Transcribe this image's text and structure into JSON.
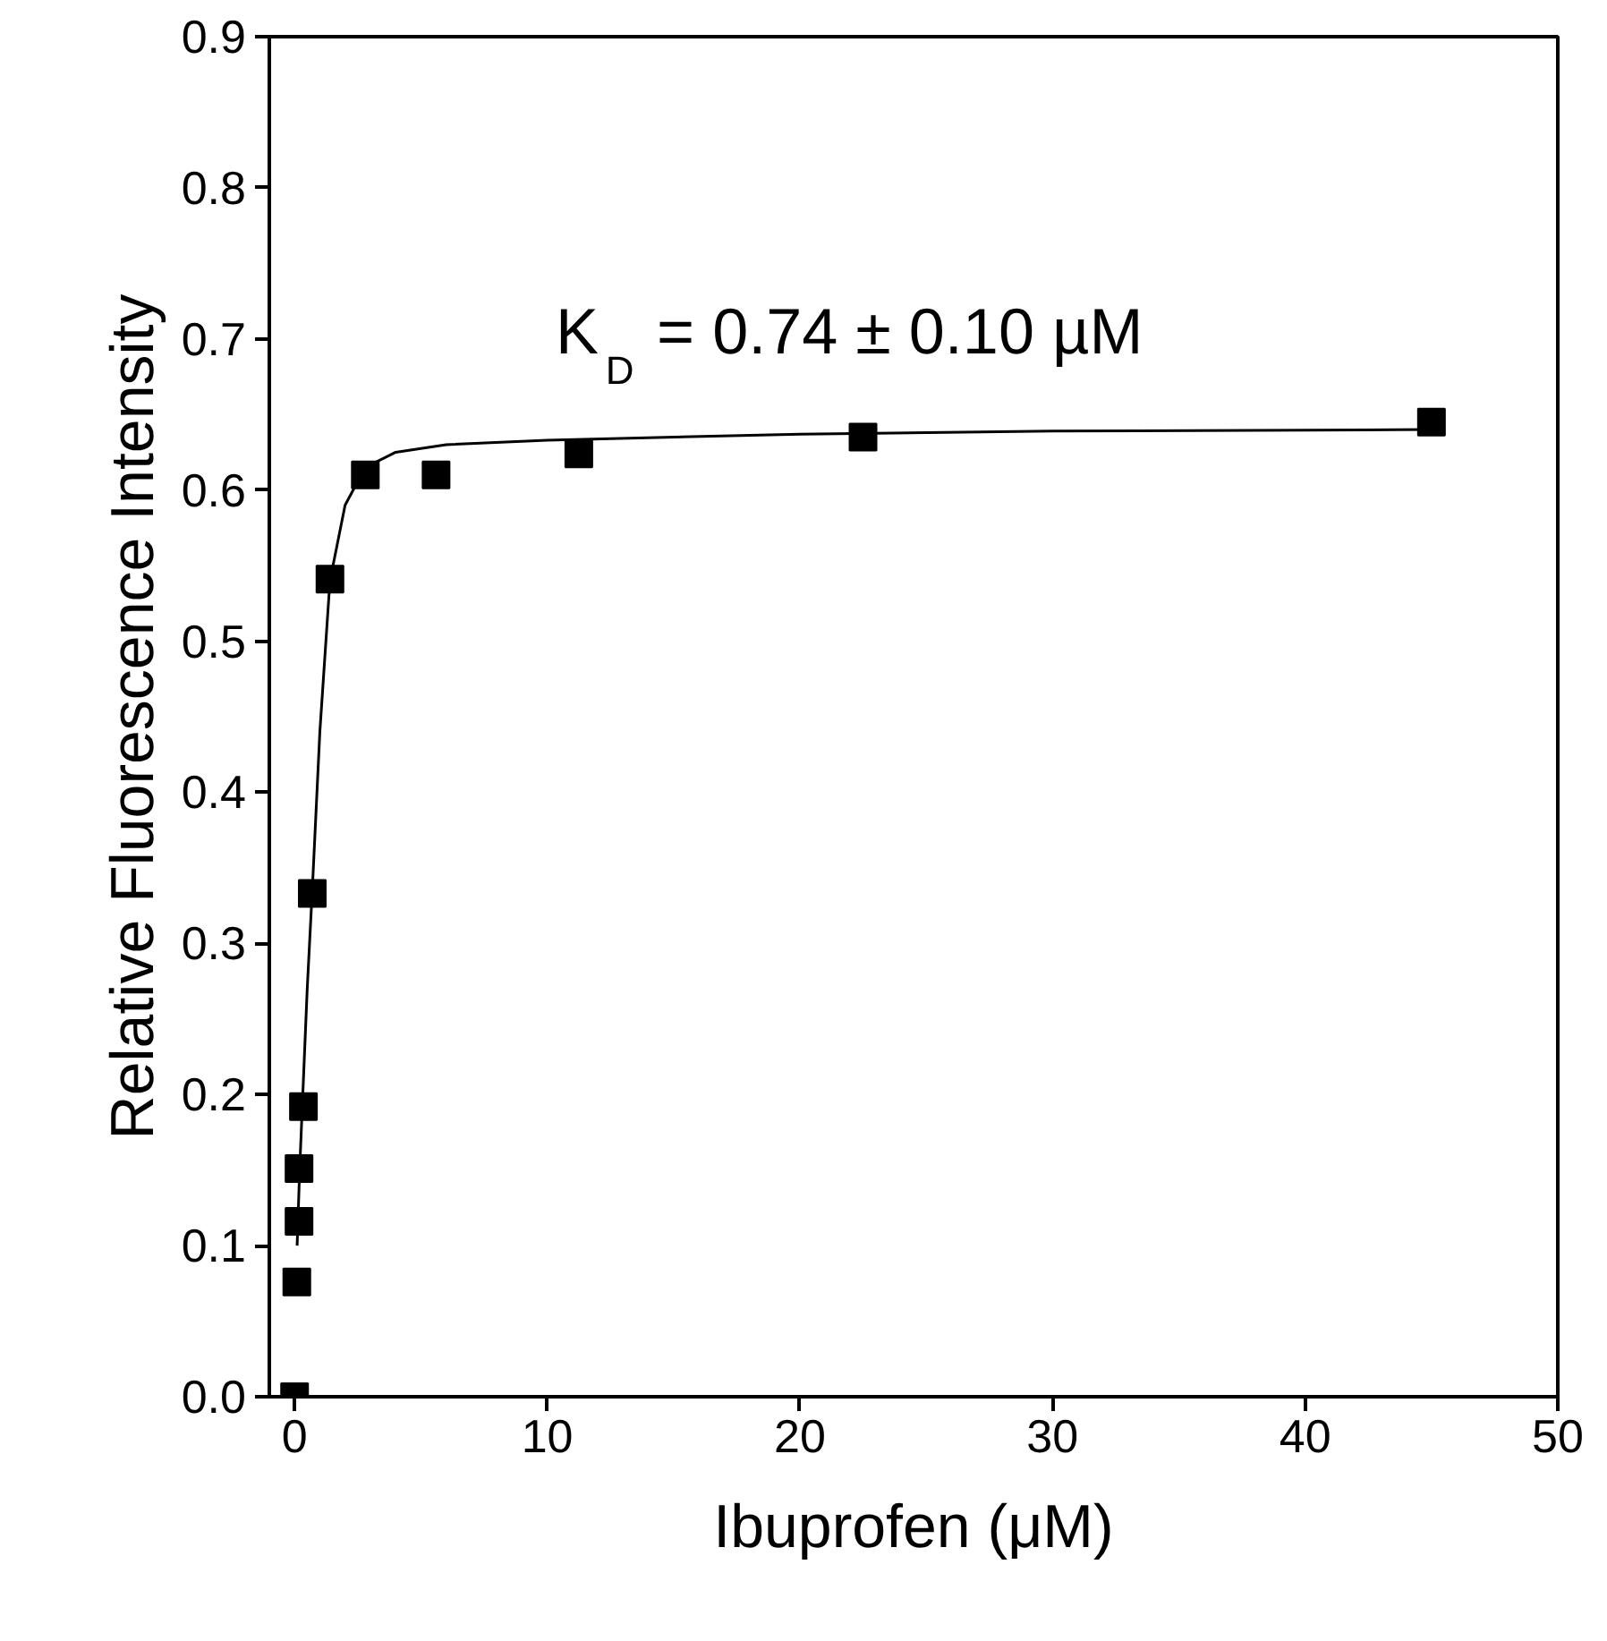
{
  "chart_data": {
    "type": "scatter",
    "xlabel": "Ibuprofen (μM)",
    "ylabel": "Relative Fluorescence Intensity",
    "annotations": [
      "K$_{D}$ = 0.74 ± 0.10 µM"
    ],
    "xlim": [
      -1,
      50
    ],
    "ylim": [
      0,
      0.9
    ],
    "xticks": [
      0,
      10,
      20,
      30,
      40,
      50
    ],
    "yticks": [
      {
        "value": 0,
        "label": "0.0"
      },
      {
        "value": 0.1,
        "label": "0.1"
      },
      {
        "value": 0.2,
        "label": "0.2"
      },
      {
        "value": 0.3,
        "label": "0.3"
      },
      {
        "value": 0.4,
        "label": "0.4"
      },
      {
        "value": 0.5,
        "label": "0.5"
      },
      {
        "value": 0.6,
        "label": "0.6"
      },
      {
        "value": 0.7,
        "label": "0.7"
      },
      {
        "value": 0.8,
        "label": "0.8"
      },
      {
        "value": 0.9,
        "label": "0.9"
      }
    ],
    "grid": false,
    "series": [
      {
        "marker": "square",
        "color": "#000000",
        "x": [
          0,
          0.088,
          0.176,
          0.176,
          0.35,
          0.7,
          1.4,
          2.8,
          5.6,
          11.25,
          22.5,
          45
        ],
        "values": [
          0.0,
          0.076,
          0.116,
          0.151,
          0.192,
          0.333,
          0.541,
          0.61,
          0.61,
          0.624,
          0.635,
          0.645
        ]
      },
      {
        "type": "line",
        "color": "#000000",
        "line_style": "solid",
        "x": [
          0.1,
          0.2,
          0.3,
          0.5,
          0.7,
          1.0,
          1.4,
          2.0,
          2.8,
          4,
          6,
          10,
          20,
          30,
          45
        ],
        "values": [
          0.1,
          0.15,
          0.19,
          0.27,
          0.335,
          0.44,
          0.54,
          0.59,
          0.615,
          0.625,
          0.63,
          0.633,
          0.637,
          0.639,
          0.64
        ]
      }
    ]
  }
}
